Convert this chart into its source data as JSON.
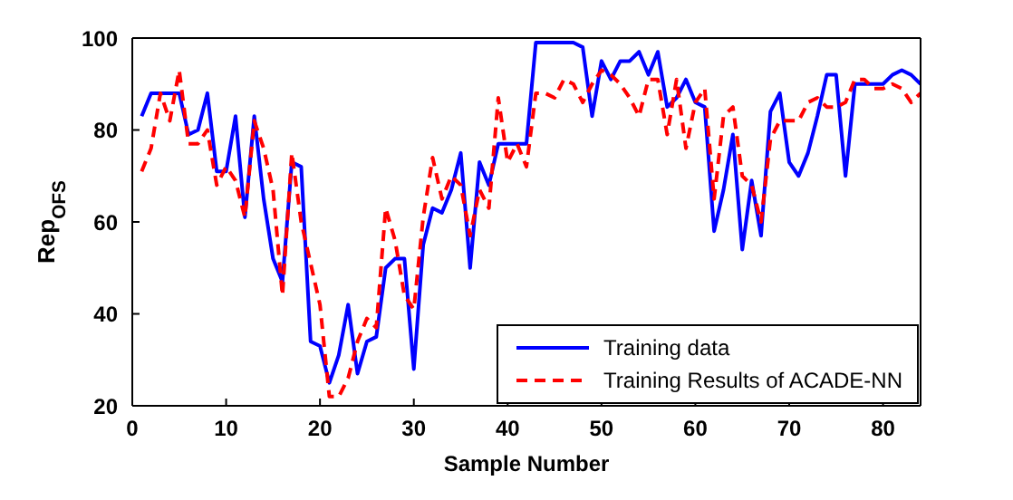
{
  "chart_data": {
    "type": "line",
    "xlabel": "Sample Number",
    "ylabel": "Rep$_{OFS}$",
    "x": [
      1,
      2,
      3,
      4,
      5,
      6,
      7,
      8,
      9,
      10,
      11,
      12,
      13,
      14,
      15,
      16,
      17,
      18,
      19,
      20,
      21,
      22,
      23,
      24,
      25,
      26,
      27,
      28,
      29,
      30,
      31,
      32,
      33,
      34,
      35,
      36,
      37,
      38,
      39,
      40,
      41,
      42,
      43,
      44,
      45,
      46,
      47,
      48,
      49,
      50,
      51,
      52,
      53,
      54,
      55,
      56,
      57,
      58,
      59,
      60,
      61,
      62,
      63,
      64,
      65,
      66,
      67,
      68,
      69,
      70,
      71,
      72,
      73,
      74,
      75,
      76,
      77,
      78,
      79,
      80,
      81,
      82,
      83,
      84
    ],
    "series": [
      {
        "name": "Training data",
        "color": "#0000ff",
        "line_style": "solid",
        "values": [
          83,
          88,
          88,
          88,
          88,
          79,
          80,
          88,
          71,
          71,
          83,
          61,
          83,
          65,
          52,
          47,
          73,
          72,
          34,
          33,
          25,
          31,
          42,
          27,
          34,
          35,
          50,
          52,
          52,
          28,
          55,
          63,
          62,
          67,
          75,
          50,
          73,
          68,
          77,
          77,
          77,
          77,
          99,
          99,
          99,
          99,
          99,
          98,
          83,
          95,
          91,
          95,
          95,
          97,
          92,
          97,
          85,
          87,
          91,
          86,
          85,
          58,
          67,
          79,
          54,
          69,
          57,
          84,
          88,
          73,
          70,
          75,
          83,
          92,
          92,
          70,
          90,
          90,
          90,
          90,
          92,
          93,
          92,
          90
        ]
      },
      {
        "name": "Training Results of ACADE-NN",
        "color": "#ff0000",
        "line_style": "dashed",
        "values": [
          71,
          76,
          88,
          82,
          93,
          77,
          77,
          80,
          68,
          72,
          69,
          61,
          82,
          76,
          67,
          44,
          75,
          60,
          51,
          42,
          22,
          22,
          26,
          34,
          39,
          37,
          63,
          56,
          44,
          41,
          61,
          74,
          65,
          70,
          68,
          57,
          67,
          63,
          87,
          73,
          77,
          72,
          88,
          88,
          87,
          91,
          90,
          86,
          90,
          93,
          92,
          90,
          87,
          83,
          91,
          91,
          79,
          91,
          76,
          86,
          89,
          65,
          83,
          85,
          70,
          68,
          60,
          78,
          82,
          82,
          82,
          86,
          87,
          85,
          85,
          86,
          91,
          91,
          89,
          89,
          90,
          89,
          86,
          88
        ]
      }
    ],
    "xlim": [
      0,
      84
    ],
    "xticks": [
      0,
      10,
      20,
      30,
      40,
      50,
      60,
      70,
      80
    ],
    "ylim": [
      20,
      100
    ],
    "yticks": [
      20,
      40,
      60,
      80,
      100
    ],
    "grid": false,
    "legend": "bottom right",
    "marker": "none"
  }
}
